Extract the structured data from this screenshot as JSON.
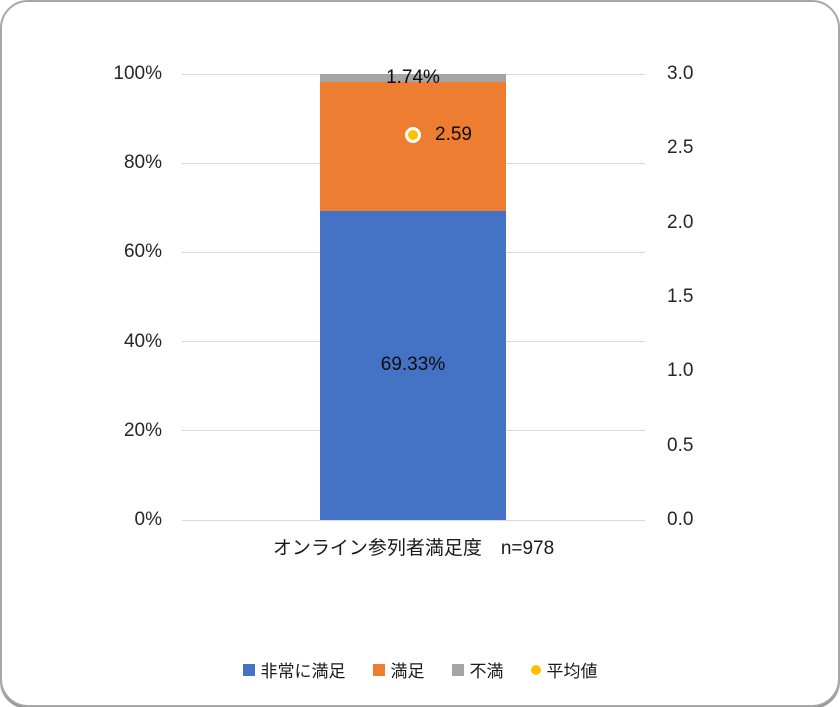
{
  "chart_data": {
    "type": "bar",
    "subtype": "stacked-column-with-average-marker",
    "categories": [
      "オンライン参列者満足度　n=978"
    ],
    "series": [
      {
        "name": "非常に満足",
        "values": [
          69.33
        ],
        "color": "#4472C4",
        "data_label": "69.33%"
      },
      {
        "name": "満足",
        "values": [
          28.93
        ],
        "color": "#ED7D31",
        "data_label": ""
      },
      {
        "name": "不満",
        "values": [
          1.74
        ],
        "color": "#A5A5A5",
        "data_label": "1.74%"
      }
    ],
    "marker_series": {
      "name": "平均値",
      "values": [
        2.59
      ],
      "color": "#FFC000",
      "border_color": "#ffffff",
      "axis": "right",
      "data_label": "2.59"
    },
    "left_axis": {
      "min": 0,
      "max": 100,
      "tick_labels": [
        "0%",
        "20%",
        "40%",
        "60%",
        "80%",
        "100%"
      ]
    },
    "right_axis": {
      "min": 0,
      "max": 3,
      "tick_labels": [
        "0.0",
        "0.5",
        "1.0",
        "1.5",
        "2.0",
        "2.5",
        "3.0"
      ]
    },
    "grid": true,
    "gridline_color": "#d9d9d9",
    "title": "",
    "xlabel": "オンライン参列者満足度　n=978",
    "ylabel": "",
    "legend_position": "bottom",
    "legend": [
      {
        "label": "非常に満足",
        "marker": "square",
        "color": "#4472C4"
      },
      {
        "label": "満足",
        "marker": "square",
        "color": "#ED7D31"
      },
      {
        "label": "不満",
        "marker": "square",
        "color": "#A5A5A5"
      },
      {
        "label": "平均値",
        "marker": "circle",
        "color": "#FFC000"
      }
    ]
  }
}
